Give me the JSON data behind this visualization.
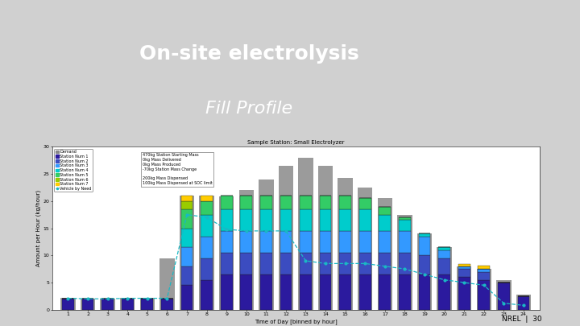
{
  "title_main": "On-site electrolysis",
  "title_sub": "Fill Profile",
  "chart_title": "Sample Station: Small Electrolyzer",
  "xlabel": "Time of Day [binned by hour]",
  "ylabel": "Amount per Hour (kg/hour)",
  "background_top": "#1a7abf",
  "background_chart": "#f0f0f0",
  "nrel_text": "NREL  |  30",
  "hours": [
    1,
    2,
    3,
    4,
    5,
    6,
    7,
    8,
    9,
    10,
    11,
    12,
    13,
    14,
    15,
    16,
    17,
    18,
    19,
    20,
    21,
    22,
    23,
    24
  ],
  "demand_gray": [
    2.2,
    2.1,
    2.1,
    2.2,
    2.2,
    9.4,
    21.0,
    21.0,
    20.8,
    22.0,
    24.0,
    26.5,
    28.0,
    26.5,
    24.2,
    22.5,
    20.5,
    17.5,
    14.0,
    11.5,
    8.0,
    7.5,
    5.5,
    2.8
  ],
  "station_layers": [
    [
      2.0,
      2.0,
      2.0,
      2.0,
      2.0,
      2.0,
      4.5,
      5.5,
      6.5,
      6.5,
      6.5,
      6.5,
      6.5,
      6.5,
      6.5,
      6.5,
      6.5,
      6.5,
      6.5,
      6.5,
      6.0,
      5.5,
      5.0,
      2.5
    ],
    [
      0.0,
      0.0,
      0.0,
      0.0,
      0.0,
      0.0,
      3.5,
      4.0,
      4.0,
      4.0,
      4.0,
      4.0,
      4.0,
      4.0,
      4.0,
      4.0,
      4.0,
      4.0,
      3.5,
      3.0,
      1.5,
      1.5,
      0.0,
      0.0
    ],
    [
      0.0,
      0.0,
      0.0,
      0.0,
      0.0,
      0.0,
      3.5,
      4.0,
      4.0,
      4.0,
      4.0,
      4.0,
      4.0,
      4.0,
      4.0,
      4.0,
      4.0,
      4.0,
      3.5,
      1.5,
      0.5,
      0.5,
      0.0,
      0.0
    ],
    [
      0.0,
      0.0,
      0.0,
      0.0,
      0.0,
      0.0,
      3.5,
      4.0,
      4.0,
      4.0,
      4.0,
      4.0,
      4.0,
      4.0,
      4.0,
      4.0,
      3.0,
      2.0,
      0.5,
      0.5,
      0.0,
      0.0,
      0.0,
      0.0
    ],
    [
      0.0,
      0.0,
      0.0,
      0.0,
      0.0,
      0.0,
      3.5,
      2.5,
      2.5,
      2.5,
      2.5,
      2.5,
      2.5,
      2.5,
      2.5,
      2.0,
      1.5,
      0.5,
      0.0,
      0.0,
      0.0,
      0.0,
      0.0,
      0.0
    ],
    [
      0.0,
      0.0,
      0.0,
      0.0,
      0.0,
      0.0,
      1.5,
      0.0,
      0.0,
      0.0,
      0.0,
      0.0,
      0.0,
      0.0,
      0.0,
      0.0,
      0.0,
      0.0,
      0.0,
      0.0,
      0.0,
      0.0,
      0.0,
      0.0
    ],
    [
      0.0,
      0.0,
      0.0,
      0.0,
      0.0,
      0.0,
      1.0,
      1.0,
      0.0,
      0.0,
      0.0,
      0.0,
      0.0,
      0.0,
      0.0,
      0.0,
      0.0,
      0.0,
      0.0,
      0.0,
      0.4,
      0.6,
      0.0,
      0.0
    ]
  ],
  "layer_colors": [
    "#2b1a9e",
    "#3b4cc0",
    "#3399ff",
    "#00cccc",
    "#33cc66",
    "#99cc00",
    "#ffcc00"
  ],
  "line_color": "#1ab8c4",
  "line_values": [
    2.1,
    2.0,
    2.0,
    2.1,
    2.1,
    2.1,
    17.5,
    17.0,
    14.8,
    14.5,
    14.5,
    14.5,
    9.0,
    8.5,
    8.5,
    8.5,
    8.0,
    7.5,
    6.5,
    5.5,
    5.0,
    4.5,
    1.2,
    0.8
  ],
  "ylim": [
    0,
    30
  ],
  "yticks": [
    0,
    5,
    10,
    15,
    20,
    25,
    30
  ],
  "annotation_lines1": "470kg Station Starting Mass\n0kg Mass Delivered\n0kg Mass Produced\n-70kg Station Mass Change",
  "annotation_lines2": "200kg Mass Dispensed\n100kg Mass Dispensed at SOC limit",
  "legend_labels": [
    "Demand",
    "Station Num 1",
    "Station Num 2",
    "Station Num 3",
    "Station Num 4",
    "Station Num 5",
    "Station Num 6",
    "Station Num 7",
    "Vehicle by Need"
  ],
  "legend_colors": [
    "#888888",
    "#2b1a9e",
    "#3b4cc0",
    "#3399ff",
    "#00cccc",
    "#33cc66",
    "#99cc00",
    "#ffcc00",
    "#1ab8c4"
  ]
}
